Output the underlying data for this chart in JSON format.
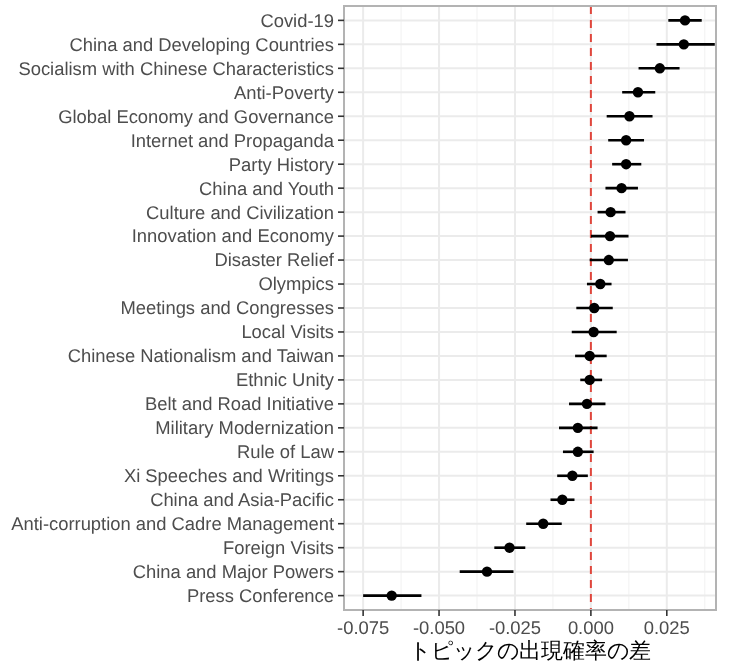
{
  "chart_data": {
    "type": "scatter",
    "orientation": "horizontal",
    "xlabel": "トピックの出現確率の差",
    "categories": [
      "Covid-19",
      "China and Developing Countries",
      "Socialism with Chinese Characteristics",
      "Anti-Poverty",
      "Global Economy and Governance",
      "Internet and Propaganda",
      "Party History",
      "China and Youth",
      "Culture and Civilization",
      "Innovation and Economy",
      "Disaster Relief",
      "Olympics",
      "Meetings and Congresses",
      "Local Visits",
      "Chinese Nationalism and Taiwan",
      "Ethnic Unity",
      "Belt and Road Initiative",
      "Military Modernization",
      "Rule of Law",
      "Xi Speeches and Writings",
      "China and Asia-Pacific",
      "Anti-corruption and Cadre Management",
      "Foreign Visits",
      "China and Major Powers",
      "Press Conference"
    ],
    "series": [
      {
        "color": "#000000",
        "values": [
          0.031,
          0.0306,
          0.0227,
          0.0155,
          0.0127,
          0.0116,
          0.0116,
          0.0101,
          0.0065,
          0.0063,
          0.0059,
          0.0031,
          0.0011,
          0.0009,
          -0.0004,
          -0.0004,
          -0.0013,
          -0.0043,
          -0.0043,
          -0.0061,
          -0.0094,
          -0.0157,
          -0.0268,
          -0.0342,
          -0.0656
        ],
        "errors": [
          [
            0.0255,
            0.0365
          ],
          [
            0.0216,
            0.0408
          ],
          [
            0.0157,
            0.0292
          ],
          [
            0.0103,
            0.0212
          ],
          [
            0.0052,
            0.0203
          ],
          [
            0.0057,
            0.0175
          ],
          [
            0.007,
            0.0166
          ],
          [
            0.0048,
            0.0155
          ],
          [
            0.0022,
            0.0114
          ],
          [
            0.0,
            0.0124
          ],
          [
            -0.0004,
            0.0122
          ],
          [
            -0.0013,
            0.0068
          ],
          [
            -0.0048,
            0.0072
          ],
          [
            -0.0063,
            0.0085
          ],
          [
            -0.0052,
            0.0052
          ],
          [
            -0.0035,
            0.0037
          ],
          [
            -0.0072,
            0.0048
          ],
          [
            -0.0105,
            0.0022
          ],
          [
            -0.0092,
            0.0009
          ],
          [
            -0.0111,
            -0.001
          ],
          [
            -0.0133,
            -0.0054
          ],
          [
            -0.0213,
            -0.0096
          ],
          [
            -0.0318,
            -0.0216
          ],
          [
            -0.0432,
            -0.0255
          ],
          [
            -0.075,
            -0.0558
          ]
        ]
      }
    ],
    "xlim": [
      -0.0813,
      0.0412
    ],
    "xticks": [
      -0.075,
      {
        "value": -0.05,
        "label": "-0.050"
      },
      -0.025,
      {
        "value": 0,
        "label": "0.000"
      },
      0.025
    ],
    "ref_lines": [
      {
        "axis": "x",
        "value": 0,
        "color": "#e0463c",
        "line_style": "dashed"
      }
    ],
    "grid": true,
    "marker": "circle"
  }
}
